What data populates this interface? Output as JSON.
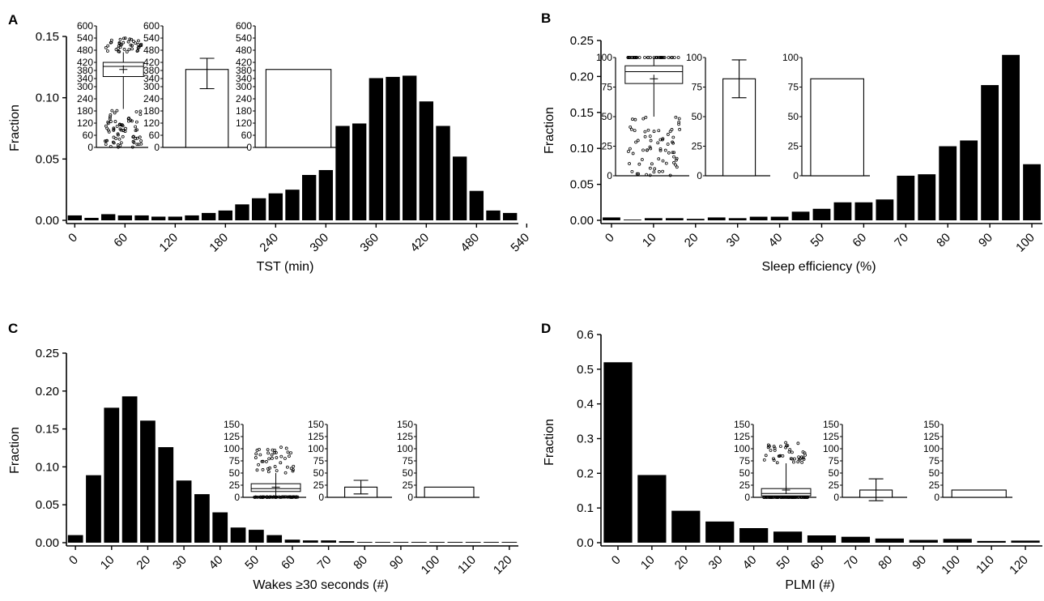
{
  "colors": {
    "bar": "#000000",
    "axis": "#000000",
    "inset_fill": "#ffffff"
  },
  "chart_data": [
    {
      "panel": "A",
      "type": "bar",
      "ylabel": "Fraction",
      "xlabel": "TST (min)",
      "ylim": [
        0,
        0.15
      ],
      "y_ticks": [
        "0.00",
        "0.05",
        "0.10",
        "0.15"
      ],
      "x_ticks": [
        "0",
        "60",
        "120",
        "180",
        "240",
        "300",
        "360",
        "420",
        "480",
        "540"
      ],
      "x_step": 20,
      "x_min": 0,
      "values": [
        0.004,
        0.002,
        0.005,
        0.004,
        0.004,
        0.003,
        0.003,
        0.004,
        0.006,
        0.008,
        0.013,
        0.018,
        0.022,
        0.025,
        0.037,
        0.041,
        0.077,
        0.079,
        0.116,
        0.117,
        0.118,
        0.097,
        0.077,
        0.052,
        0.024,
        0.008,
        0.006
      ],
      "grid": false,
      "insets": {
        "ylim": [
          0,
          600
        ],
        "y_ticks": [
          "0",
          "60",
          "120",
          "180",
          "240",
          "300",
          "340",
          "380",
          "420",
          "480",
          "540",
          "600"
        ],
        "box": {
          "whisker_low": 190,
          "q1": 350,
          "median": 400,
          "q3": 420,
          "whisker_high": 470,
          "mean": 385
        },
        "mean_sd": {
          "mean": 385,
          "low": 290,
          "high": 440
        },
        "bar_mean": 385
      }
    },
    {
      "panel": "B",
      "type": "bar",
      "ylabel": "Fraction",
      "xlabel": "Sleep efficiency (%)",
      "ylim": [
        0,
        0.25
      ],
      "y_ticks": [
        "0.00",
        "0.05",
        "0.10",
        "0.15",
        "0.20",
        "0.25"
      ],
      "x_ticks": [
        "0",
        "10",
        "20",
        "30",
        "40",
        "50",
        "60",
        "70",
        "80",
        "90",
        "100"
      ],
      "x_step": 5,
      "x_min": 0,
      "values": [
        0.004,
        0.001,
        0.003,
        0.003,
        0.002,
        0.004,
        0.003,
        0.005,
        0.005,
        0.012,
        0.016,
        0.025,
        0.025,
        0.029,
        0.062,
        0.064,
        0.103,
        0.111,
        0.188,
        0.23,
        0.078
      ],
      "grid": false,
      "insets": {
        "ylim": [
          0,
          100
        ],
        "y_ticks": [
          "0",
          "25",
          "50",
          "75",
          "100"
        ],
        "box": {
          "whisker_low": 50,
          "q1": 78,
          "median": 88,
          "q3": 93,
          "whisker_high": 100,
          "mean": 82
        },
        "mean_sd": {
          "mean": 82,
          "low": 66,
          "high": 98
        },
        "bar_mean": 82
      }
    },
    {
      "panel": "C",
      "type": "bar",
      "ylabel": "Fraction",
      "xlabel": "Wakes ≥30 seconds (#)",
      "ylim": [
        0,
        0.25
      ],
      "y_ticks": [
        "0.00",
        "0.05",
        "0.10",
        "0.15",
        "0.20",
        "0.25"
      ],
      "x_ticks": [
        "0",
        "10",
        "20",
        "30",
        "40",
        "50",
        "60",
        "70",
        "80",
        "90",
        "100",
        "110",
        "120"
      ],
      "x_step": 5,
      "x_min": 0,
      "values": [
        0.01,
        0.089,
        0.178,
        0.193,
        0.161,
        0.126,
        0.082,
        0.064,
        0.04,
        0.02,
        0.017,
        0.01,
        0.004,
        0.003,
        0.003,
        0.002,
        0.001,
        0.001,
        0.001,
        0.001,
        0.001,
        0.001,
        0.001,
        0.001,
        0.001
      ],
      "grid": false,
      "insets": {
        "ylim": [
          0,
          150
        ],
        "y_ticks": [
          "0",
          "25",
          "50",
          "75",
          "100",
          "125",
          "150"
        ],
        "box": {
          "whisker_low": 1,
          "q1": 12,
          "median": 18,
          "q3": 28,
          "whisker_high": 50,
          "mean": 21
        },
        "mean_sd": {
          "mean": 21,
          "low": 7,
          "high": 35
        },
        "bar_mean": 21
      }
    },
    {
      "panel": "D",
      "type": "bar",
      "ylabel": "Fraction",
      "xlabel": "PLMI (#)",
      "ylim": [
        0,
        0.6
      ],
      "y_ticks": [
        "0.0",
        "0.1",
        "0.2",
        "0.3",
        "0.4",
        "0.5",
        "0.6"
      ],
      "x_ticks": [
        "0",
        "10",
        "20",
        "30",
        "40",
        "50",
        "60",
        "70",
        "80",
        "90",
        "100",
        "110",
        "120"
      ],
      "x_step": 10,
      "x_min": 0,
      "values": [
        0.52,
        0.195,
        0.092,
        0.061,
        0.042,
        0.032,
        0.021,
        0.017,
        0.012,
        0.008,
        0.011,
        0.005,
        0.006
      ],
      "grid": false,
      "insets": {
        "ylim": [
          0,
          150
        ],
        "y_ticks": [
          "0",
          "25",
          "50",
          "75",
          "100",
          "125",
          "150"
        ],
        "box": {
          "whisker_low": 0,
          "q1": 3,
          "median": 8,
          "q3": 18,
          "whisker_high": 70,
          "mean": 15
        },
        "mean_sd": {
          "mean": 15,
          "low": -7,
          "high": 38
        },
        "bar_mean": 15
      }
    }
  ]
}
